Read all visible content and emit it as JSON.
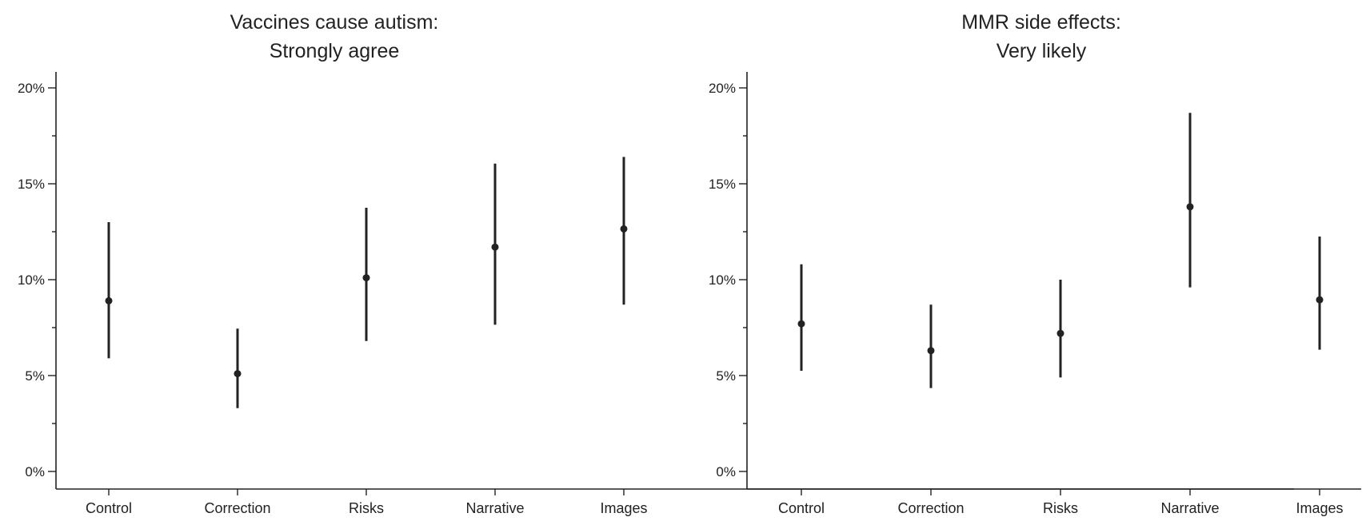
{
  "chart_data": [
    {
      "type": "scatter",
      "title": "Vaccines cause autism:",
      "subtitle": "Strongly agree",
      "xlabel": "",
      "ylabel": "",
      "categories": [
        "Control",
        "Correction",
        "Risks",
        "Narrative",
        "Images"
      ],
      "values": [
        8.9,
        5.1,
        10.1,
        11.7,
        12.65
      ],
      "lower": [
        5.9,
        3.3,
        6.8,
        7.65,
        8.7
      ],
      "upper": [
        13.0,
        7.45,
        13.75,
        16.05,
        16.4
      ],
      "ylim": [
        0,
        20
      ],
      "yticks": [
        0,
        5,
        10,
        15,
        20
      ],
      "ytick_labels": [
        "0%",
        "5%",
        "10%",
        "15%",
        "20%"
      ],
      "grid": false,
      "legend": "none"
    },
    {
      "type": "scatter",
      "title": "MMR side effects:",
      "subtitle": "Very likely",
      "xlabel": "",
      "ylabel": "",
      "categories": [
        "Control",
        "Correction",
        "Risks",
        "Narrative",
        "Images"
      ],
      "values": [
        7.7,
        6.3,
        7.2,
        13.8,
        8.95
      ],
      "lower": [
        5.25,
        4.35,
        4.9,
        9.6,
        6.35
      ],
      "upper": [
        10.8,
        8.7,
        10.0,
        18.7,
        12.25
      ],
      "ylim": [
        0,
        20
      ],
      "yticks": [
        0,
        5,
        10,
        15,
        20
      ],
      "ytick_labels": [
        "0%",
        "5%",
        "10%",
        "15%",
        "20%"
      ],
      "grid": false,
      "legend": "none"
    }
  ]
}
